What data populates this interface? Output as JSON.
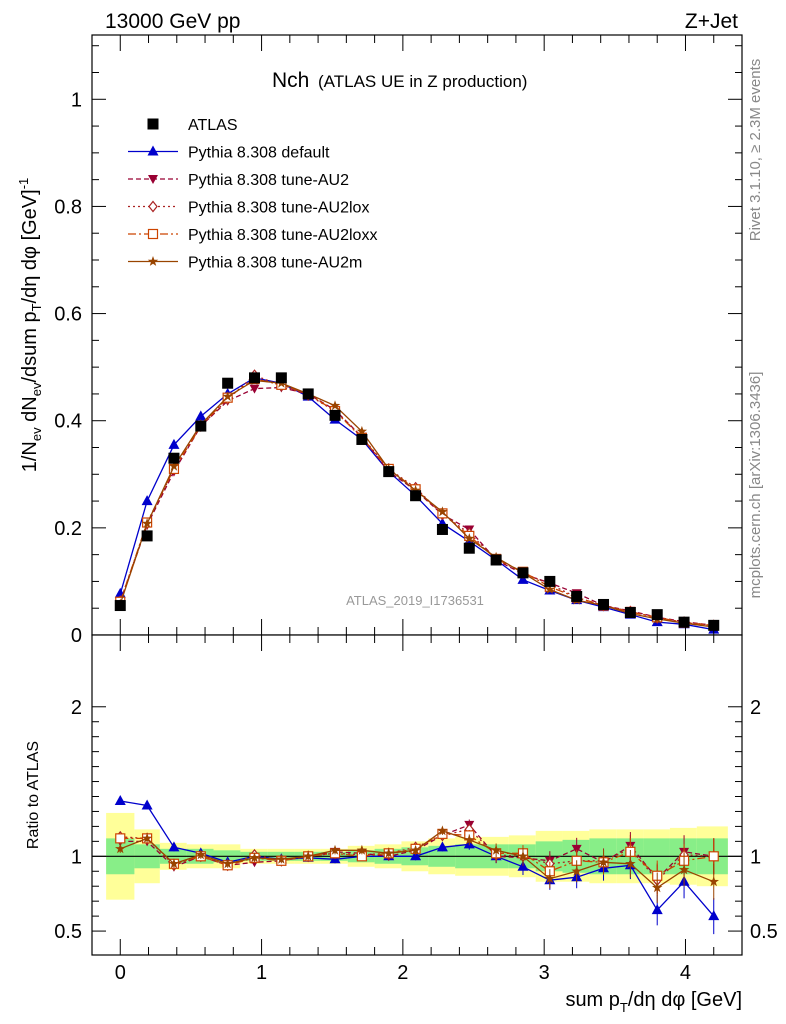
{
  "header": {
    "energy": "13000 GeV pp",
    "process": "Z+Jet",
    "title_main": "Nch",
    "title_sub": "(ATLAS UE in Z production)",
    "analysis_id": "ATLAS_2019_I1736531",
    "rivet_note": "Rivet 3.1.10, ≥ 2.3M events",
    "site_note": "mcplots.cern.ch [arXiv:1306.3436]"
  },
  "colors": {
    "atlas": "#000000",
    "default": "#0000cc",
    "au2": "#990033",
    "au2lox": "#aa2222",
    "au2loxx": "#cc4400",
    "au2m": "#994400",
    "band_green": "#88ee88",
    "band_yellow": "#ffff99"
  },
  "chart_data": [
    {
      "type": "line",
      "ylabel": "1/Nev dNev/dsum pT/dη dφ [GeV]-1",
      "xlim": [
        -0.2,
        4.4
      ],
      "ylim": [
        0,
        1.12
      ],
      "yticks": [
        0,
        0.2,
        0.4,
        0.6,
        0.8,
        1
      ],
      "ytick_labels": [
        "0",
        "0.2",
        "0.4",
        "0.6",
        "0.8",
        "1"
      ],
      "legend_position": "top-left",
      "x": [
        0,
        0.19,
        0.38,
        0.57,
        0.76,
        0.95,
        1.14,
        1.33,
        1.52,
        1.71,
        1.9,
        2.09,
        2.28,
        2.47,
        2.66,
        2.85,
        3.04,
        3.23,
        3.42,
        3.61,
        3.8,
        3.99,
        4.2
      ],
      "series": [
        {
          "name": "ATLAS",
          "style": "data",
          "values": [
            0.055,
            0.185,
            0.33,
            0.39,
            0.47,
            0.48,
            0.48,
            0.45,
            0.41,
            0.365,
            0.305,
            0.26,
            0.197,
            0.162,
            0.14,
            0.116,
            0.1,
            0.072,
            0.057,
            0.042,
            0.038,
            0.024,
            0.018
          ]
        },
        {
          "name": "Pythia 8.308 default",
          "style": "solid",
          "values": [
            0.077,
            0.25,
            0.355,
            0.408,
            0.45,
            0.48,
            0.47,
            0.445,
            0.402,
            0.365,
            0.305,
            0.26,
            0.208,
            0.175,
            0.14,
            0.103,
            0.083,
            0.065,
            0.052,
            0.038,
            0.024,
            0.02,
            0.01
          ]
        },
        {
          "name": "Pythia 8.308 tune-AU2",
          "style": "dashed",
          "values": [
            0.062,
            0.205,
            0.305,
            0.39,
            0.437,
            0.46,
            0.462,
            0.45,
            0.42,
            0.37,
            0.305,
            0.27,
            0.225,
            0.197,
            0.14,
            0.114,
            0.097,
            0.078,
            0.055,
            0.045,
            0.033,
            0.025,
            0.018
          ]
        },
        {
          "name": "Pythia 8.308 tune-AU2lox",
          "style": "dotted",
          "values": [
            0.063,
            0.208,
            0.31,
            0.39,
            0.44,
            0.485,
            0.465,
            0.448,
            0.418,
            0.37,
            0.31,
            0.275,
            0.225,
            0.19,
            0.142,
            0.116,
            0.095,
            0.07,
            0.055,
            0.044,
            0.032,
            0.024,
            0.018
          ]
        },
        {
          "name": "Pythia 8.308 tune-AU2loxx",
          "style": "dashdot",
          "values": [
            0.062,
            0.21,
            0.31,
            0.39,
            0.443,
            0.478,
            0.467,
            0.45,
            0.418,
            0.368,
            0.31,
            0.272,
            0.227,
            0.185,
            0.142,
            0.118,
            0.09,
            0.07,
            0.055,
            0.043,
            0.033,
            0.023,
            0.018
          ]
        },
        {
          "name": "Pythia 8.308 tune-AU2m",
          "style": "solid-star",
          "values": [
            0.058,
            0.208,
            0.315,
            0.393,
            0.445,
            0.475,
            0.47,
            0.45,
            0.428,
            0.38,
            0.31,
            0.27,
            0.23,
            0.18,
            0.145,
            0.116,
            0.085,
            0.065,
            0.055,
            0.04,
            0.03,
            0.022,
            0.015
          ]
        }
      ]
    },
    {
      "type": "line",
      "xlabel": "sum pT/dη dφ [GeV]",
      "ylabel": "Ratio to ATLAS",
      "xlim": [
        -0.2,
        4.4
      ],
      "ylim": [
        0.34,
        2.48
      ],
      "yticks": [
        0.5,
        1,
        2
      ],
      "ytick_labels": [
        "0.5",
        "1",
        "2"
      ],
      "xticks": [
        0,
        1,
        2,
        3,
        4
      ],
      "xtick_labels": [
        "0",
        "1",
        "2",
        "3",
        "4"
      ],
      "x": [
        0,
        0.19,
        0.38,
        0.57,
        0.76,
        0.95,
        1.14,
        1.33,
        1.52,
        1.71,
        1.9,
        2.09,
        2.28,
        2.47,
        2.66,
        2.85,
        3.04,
        3.23,
        3.42,
        3.61,
        3.8,
        3.99,
        4.2
      ],
      "bands": {
        "edges": [
          -0.1,
          0.1,
          0.28,
          0.47,
          0.66,
          0.85,
          1.04,
          1.23,
          1.42,
          1.61,
          1.8,
          1.99,
          2.18,
          2.37,
          2.56,
          2.75,
          2.94,
          3.13,
          3.32,
          3.51,
          3.7,
          3.89,
          4.08,
          4.3
        ],
        "green_half": [
          0.12,
          0.08,
          0.05,
          0.05,
          0.04,
          0.03,
          0.03,
          0.03,
          0.03,
          0.04,
          0.05,
          0.06,
          0.07,
          0.08,
          0.08,
          0.08,
          0.1,
          0.11,
          0.12,
          0.12,
          0.12,
          0.12,
          0.12
        ],
        "yellow_half": [
          0.29,
          0.18,
          0.09,
          0.08,
          0.08,
          0.05,
          0.05,
          0.05,
          0.05,
          0.07,
          0.08,
          0.1,
          0.12,
          0.13,
          0.13,
          0.14,
          0.17,
          0.17,
          0.18,
          0.18,
          0.18,
          0.19,
          0.2
        ]
      },
      "series": [
        {
          "name": "Pythia 8.308 default",
          "values": [
            1.37,
            1.34,
            1.06,
            1.02,
            0.96,
            1.0,
            0.98,
            0.99,
            0.98,
            1.0,
            1.0,
            1.0,
            1.06,
            1.08,
            1.0,
            0.93,
            0.84,
            0.86,
            0.92,
            0.94,
            0.64,
            0.83,
            0.6
          ]
        },
        {
          "name": "Pythia 8.308 tune-AU2",
          "values": [
            1.1,
            1.1,
            0.93,
            1.0,
            0.94,
            0.96,
            0.97,
            1.0,
            1.03,
            1.02,
            1.0,
            1.04,
            1.14,
            1.21,
            1.0,
            0.99,
            0.97,
            1.05,
            0.96,
            1.07,
            0.85,
            1.03,
            1.0
          ]
        },
        {
          "name": "Pythia 8.308 tune-AU2lox",
          "values": [
            1.13,
            1.12,
            0.94,
            1.0,
            0.94,
            1.01,
            0.97,
            1.0,
            1.02,
            1.01,
            1.02,
            1.06,
            1.14,
            1.18,
            1.01,
            1.0,
            0.95,
            0.97,
            0.97,
            1.05,
            0.84,
            1.01,
            1.0
          ]
        },
        {
          "name": "Pythia 8.308 tune-AU2loxx",
          "values": [
            1.12,
            1.12,
            0.95,
            1.0,
            0.94,
            0.99,
            0.97,
            1.0,
            1.02,
            1.0,
            1.02,
            1.05,
            1.15,
            1.14,
            1.02,
            1.02,
            0.9,
            0.97,
            0.96,
            1.03,
            0.87,
            0.97,
            1.0
          ]
        },
        {
          "name": "Pythia 8.308 tune-AU2m",
          "values": [
            1.05,
            1.12,
            0.95,
            1.01,
            0.95,
            0.99,
            0.98,
            1.0,
            1.04,
            1.04,
            1.02,
            1.04,
            1.17,
            1.11,
            1.04,
            1.0,
            0.85,
            0.9,
            0.96,
            0.95,
            0.79,
            0.91,
            0.83
          ]
        }
      ]
    }
  ]
}
